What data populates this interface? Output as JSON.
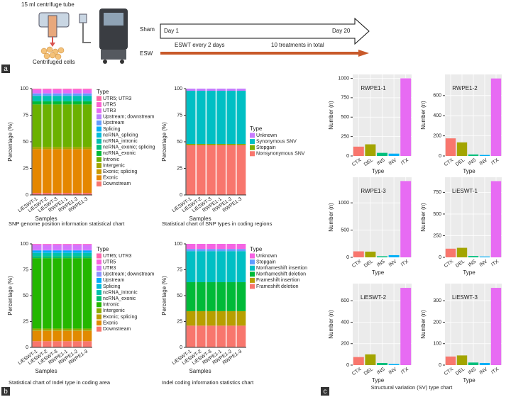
{
  "panels": [
    "a",
    "b",
    "c"
  ],
  "diagram": {
    "tube_label": "15 ml centrifuge tube",
    "cells_label": "Centrifuged cells",
    "sham": "Sham",
    "esw": "ESW",
    "sham_start": "Day 1",
    "sham_end": "Day 20",
    "esw_schedule": "ESWT every 2 days",
    "esw_total": "10 treatments in total"
  },
  "sv_caption": "Structural variation (SV) type chart",
  "chart_data": [
    {
      "type": "stacked-bar",
      "caption": "SNP genome position information statistical chart",
      "xlabel": "Samples",
      "ylabel": "Percentage (%)",
      "legend_title": "Type",
      "categories": [
        "LiESWT-1",
        "LiESWT-2",
        "LiESWT-3",
        "RWPE1-1",
        "RWPE1-2",
        "RWPE1-3"
      ],
      "ylim": [
        0,
        100
      ],
      "yticks": [
        0,
        25,
        50,
        75,
        100
      ],
      "series": [
        {
          "name": "UTR5; UTR3",
          "color": "#FF67A4",
          "values": [
            0.2,
            0.2,
            0.2,
            0.2,
            0.2,
            0.2
          ]
        },
        {
          "name": "UTR5",
          "color": "#FD61D1",
          "values": [
            1,
            1,
            1,
            1,
            1,
            1
          ]
        },
        {
          "name": "UTR3",
          "color": "#E76BF3",
          "values": [
            3,
            3,
            3,
            3,
            3,
            3
          ]
        },
        {
          "name": "Upstream; downstream",
          "color": "#B983FF",
          "values": [
            0.3,
            0.3,
            0.3,
            0.3,
            0.3,
            0.3
          ]
        },
        {
          "name": "Upstream",
          "color": "#619CFF",
          "values": [
            2,
            2,
            2,
            2,
            2,
            2
          ]
        },
        {
          "name": "Splicing",
          "color": "#00B0F6",
          "values": [
            0.1,
            0.1,
            0.1,
            0.1,
            0.1,
            0.1
          ]
        },
        {
          "name": "ncRNA_splicing",
          "color": "#00BCD8",
          "values": [
            0.1,
            0.1,
            0.1,
            0.1,
            0.1,
            0.1
          ]
        },
        {
          "name": "ncRNA_intronic",
          "color": "#00C0AF",
          "values": [
            5,
            5,
            5,
            5,
            5,
            5
          ]
        },
        {
          "name": "ncRNA_exonic; splicing",
          "color": "#00BF7D",
          "values": [
            0.1,
            0.1,
            0.1,
            0.1,
            0.1,
            0.1
          ]
        },
        {
          "name": "ncRNA_exonic",
          "color": "#00BA38",
          "values": [
            3,
            3,
            3,
            3,
            3,
            3
          ]
        },
        {
          "name": "Intronic",
          "color": "#6BB100",
          "values": [
            40,
            40,
            40,
            40,
            40,
            40
          ]
        },
        {
          "name": "Intergenic",
          "color": "#A3A500",
          "values": [
            2,
            2,
            2,
            2,
            2,
            2
          ]
        },
        {
          "name": "Exonic; splicing",
          "color": "#C99800",
          "values": [
            0.1,
            0.1,
            0.1,
            0.1,
            0.1,
            0.1
          ]
        },
        {
          "name": "Exonic",
          "color": "#E58700",
          "values": [
            41,
            41,
            41,
            41,
            41,
            41
          ]
        },
        {
          "name": "Downstream",
          "color": "#F8766D",
          "values": [
            2,
            2,
            2,
            2,
            2,
            2
          ]
        }
      ]
    },
    {
      "type": "stacked-bar",
      "caption": "Statistical chart of SNP types in coding regions",
      "xlabel": "Samples",
      "ylabel": "Percentage (%)",
      "legend_title": "Type",
      "categories": [
        "LiESWT-1",
        "LiESWT-2",
        "LiESWT-3",
        "RWPE1-1",
        "RWPE1-2",
        "RWPE1-3"
      ],
      "ylim": [
        0,
        100
      ],
      "yticks": [
        0,
        25,
        50,
        75,
        100
      ],
      "series": [
        {
          "name": "Unknown",
          "color": "#C77CFF",
          "values": [
            2,
            2,
            2,
            2,
            2,
            2
          ]
        },
        {
          "name": "Synonymous SNV",
          "color": "#00BFC4",
          "values": [
            50,
            50,
            50,
            50,
            50,
            50
          ]
        },
        {
          "name": "Stopgain",
          "color": "#7CAE00",
          "values": [
            1,
            1,
            1,
            1,
            1,
            1
          ]
        },
        {
          "name": "Nonsynonymous SNV",
          "color": "#F8766D",
          "values": [
            47,
            47,
            47,
            47,
            47,
            47
          ]
        }
      ]
    },
    {
      "type": "stacked-bar",
      "caption": "Statistical chart of Indel type in coding area",
      "xlabel": "Samples",
      "ylabel": "Percentage (%)",
      "legend_title": "Type",
      "categories": [
        "LiESWT-1",
        "LiESWT-2",
        "LiESWT-3",
        "RWPE1-1",
        "RWPE1-2",
        "RWPE1-3"
      ],
      "ylim": [
        0,
        100
      ],
      "yticks": [
        0,
        25,
        50,
        75,
        100
      ],
      "series": [
        {
          "name": "UTR5; UTR3",
          "color": "#FF65AC",
          "values": [
            0.2,
            0.2,
            0.2,
            0.2,
            0.2,
            0.2
          ]
        },
        {
          "name": "UTR5",
          "color": "#F962DD",
          "values": [
            0.8,
            0.8,
            0.8,
            0.8,
            0.8,
            0.8
          ]
        },
        {
          "name": "UTR3",
          "color": "#D575FE",
          "values": [
            5,
            5,
            5,
            5,
            5,
            5
          ]
        },
        {
          "name": "Upstream; downstream",
          "color": "#8B93FF",
          "values": [
            0.5,
            0.5,
            0.5,
            0.5,
            0.5,
            0.5
          ]
        },
        {
          "name": "Upstream",
          "color": "#00ACFC",
          "values": [
            2,
            2,
            2,
            2,
            2,
            2
          ]
        },
        {
          "name": "Splicing",
          "color": "#00BBDA",
          "values": [
            0.3,
            0.3,
            0.3,
            0.3,
            0.3,
            0.3
          ]
        },
        {
          "name": "ncRNA_intronic",
          "color": "#00C1AB",
          "values": [
            3,
            3,
            3,
            3,
            3,
            3
          ]
        },
        {
          "name": "ncRNA_exonic",
          "color": "#00BE70",
          "values": [
            2,
            2,
            2,
            2,
            2,
            2
          ]
        },
        {
          "name": "Intronic",
          "color": "#24B700",
          "values": [
            68,
            68,
            68,
            68,
            68,
            68
          ]
        },
        {
          "name": "Intergenic",
          "color": "#8CAB00",
          "values": [
            2,
            2,
            2,
            2,
            2,
            2
          ]
        },
        {
          "name": "Exonic; splicing",
          "color": "#BE9C00",
          "values": [
            0.2,
            0.2,
            0.2,
            0.2,
            0.2,
            0.2
          ]
        },
        {
          "name": "Exonic",
          "color": "#E18A00",
          "values": [
            10,
            10,
            10,
            10,
            10,
            10
          ]
        },
        {
          "name": "Downstream",
          "color": "#F8766D",
          "values": [
            6,
            6,
            6,
            6,
            6,
            6
          ]
        }
      ]
    },
    {
      "type": "stacked-bar",
      "caption": "Indel coding information statistics chart",
      "xlabel": "Samples",
      "ylabel": "Percentage (%)",
      "legend_title": "Type",
      "categories": [
        "LiESWT-1",
        "LiESWT-2",
        "LiESWT-3",
        "RWPE1-1",
        "RWPE1-2",
        "RWPE1-3"
      ],
      "ylim": [
        0,
        100
      ],
      "yticks": [
        0,
        25,
        50,
        75,
        100
      ],
      "series": [
        {
          "name": "Unknown",
          "color": "#F564E3",
          "values": [
            5,
            5,
            5,
            5,
            5,
            5
          ]
        },
        {
          "name": "Stopgain",
          "color": "#619CFF",
          "values": [
            2,
            2,
            2,
            2,
            2,
            2
          ]
        },
        {
          "name": "Nonframeshift insertion",
          "color": "#00BFC4",
          "values": [
            30,
            30,
            30,
            30,
            30,
            30
          ]
        },
        {
          "name": "Nonframeshift deletion",
          "color": "#00BA38",
          "values": [
            28,
            28,
            28,
            28,
            28,
            28
          ]
        },
        {
          "name": "Frameshift insertion",
          "color": "#B79F00",
          "values": [
            14,
            14,
            14,
            14,
            14,
            14
          ]
        },
        {
          "name": "Frameshift deletion",
          "color": "#F8766D",
          "values": [
            21,
            21,
            21,
            21,
            21,
            21
          ]
        }
      ]
    },
    {
      "type": "bar",
      "title": "RWPE1-1",
      "xlabel": "Type",
      "ylabel": "Number (n)",
      "grid": true,
      "background": "#EBEBEB",
      "categories": [
        "CTX",
        "DEL",
        "INS",
        "INV",
        "ITX"
      ],
      "colors": [
        "#F8766D",
        "#A3A500",
        "#00BF7D",
        "#00B0F6",
        "#E76BF3"
      ],
      "values": [
        120,
        150,
        40,
        30,
        1000
      ],
      "ylim": [
        0,
        1050
      ],
      "yticks": [
        0,
        250,
        500,
        750,
        1000
      ]
    },
    {
      "type": "bar",
      "title": "RWPE1-2",
      "xlabel": "Type",
      "ylabel": "Number (n)",
      "grid": true,
      "background": "#EBEBEB",
      "categories": [
        "CTX",
        "DEL",
        "INS",
        "INV",
        "ITX"
      ],
      "colors": [
        "#F8766D",
        "#A3A500",
        "#00BF7D",
        "#00B0F6",
        "#E76BF3"
      ],
      "values": [
        175,
        135,
        15,
        10,
        770
      ],
      "ylim": [
        0,
        810
      ],
      "yticks": [
        0,
        200,
        400,
        600
      ]
    },
    {
      "type": "bar",
      "title": "RWPE1-3",
      "xlabel": "Type",
      "ylabel": "Number (n)",
      "grid": true,
      "background": "#EBEBEB",
      "categories": [
        "CTX",
        "DEL",
        "INS",
        "INV",
        "ITX"
      ],
      "colors": [
        "#F8766D",
        "#A3A500",
        "#00BF7D",
        "#00B0F6",
        "#E76BF3"
      ],
      "values": [
        110,
        105,
        20,
        40,
        1400
      ],
      "ylim": [
        0,
        1470
      ],
      "yticks": [
        0,
        500,
        1000
      ]
    },
    {
      "type": "bar",
      "title": "LiESWT-1",
      "xlabel": "Type",
      "ylabel": "Number (n)",
      "grid": true,
      "background": "#EBEBEB",
      "categories": [
        "CTX",
        "DEL",
        "INS",
        "INV",
        "ITX"
      ],
      "colors": [
        "#F8766D",
        "#A3A500",
        "#00BF7D",
        "#00B0F6",
        "#E76BF3"
      ],
      "values": [
        100,
        110,
        15,
        10,
        880
      ],
      "ylim": [
        0,
        925
      ],
      "yticks": [
        0,
        250,
        500,
        750
      ]
    },
    {
      "type": "bar",
      "title": "LiESWT-2",
      "xlabel": "Type",
      "ylabel": "Number (n)",
      "grid": true,
      "background": "#EBEBEB",
      "categories": [
        "CTX",
        "DEL",
        "INS",
        "INV",
        "ITX"
      ],
      "colors": [
        "#F8766D",
        "#A3A500",
        "#00BF7D",
        "#00B0F6",
        "#E76BF3"
      ],
      "values": [
        75,
        100,
        20,
        10,
        720
      ],
      "ylim": [
        0,
        760
      ],
      "yticks": [
        0,
        200,
        400,
        600
      ]
    },
    {
      "type": "bar",
      "title": "LiESWT-3",
      "xlabel": "Type",
      "ylabel": "Number (n)",
      "grid": true,
      "background": "#EBEBEB",
      "categories": [
        "CTX",
        "DEL",
        "INS",
        "INV",
        "ITX"
      ],
      "colors": [
        "#F8766D",
        "#A3A500",
        "#00BF7D",
        "#00B0F6",
        "#E76BF3"
      ],
      "values": [
        40,
        45,
        12,
        10,
        360
      ],
      "ylim": [
        0,
        380
      ],
      "yticks": [
        0,
        100,
        200,
        300
      ]
    }
  ]
}
